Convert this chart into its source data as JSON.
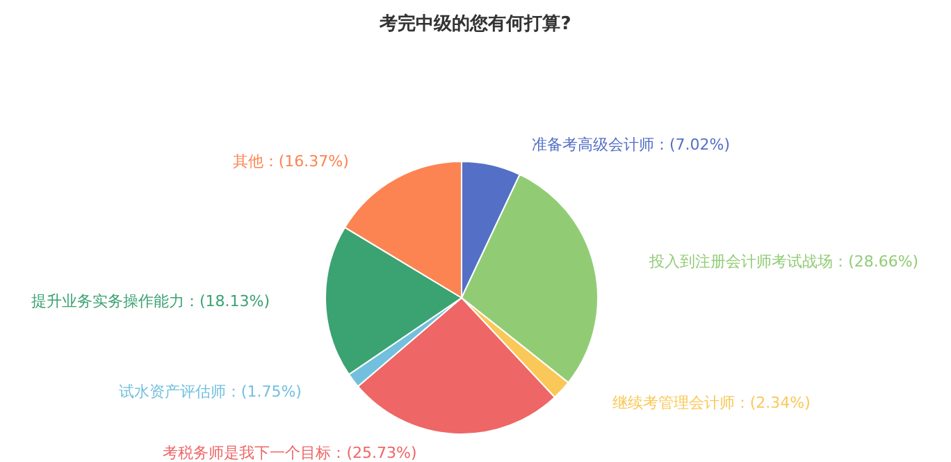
{
  "chart_data": {
    "type": "pie",
    "title": "考完中级的您有何打算?",
    "categories": [
      "准备考高级会计师",
      "投入到注册会计师考试战场",
      "继续考管理会计师",
      "考税务师是我下一个目标",
      "试水资产评估师",
      "提升业务实务操作能力",
      "其他"
    ],
    "values": [
      7.02,
      28.66,
      2.34,
      25.73,
      1.75,
      18.13,
      16.37
    ],
    "colors": [
      "#5470c6",
      "#91cc75",
      "#fac858",
      "#ee6666",
      "#73c0de",
      "#3ba272",
      "#fc8452"
    ],
    "value_labels": [
      "(7.02%)",
      "(28.66%)",
      "(2.34%)",
      "(25.73%)",
      "(1.75%)",
      "(18.13%)",
      "(16.37%)"
    ]
  }
}
